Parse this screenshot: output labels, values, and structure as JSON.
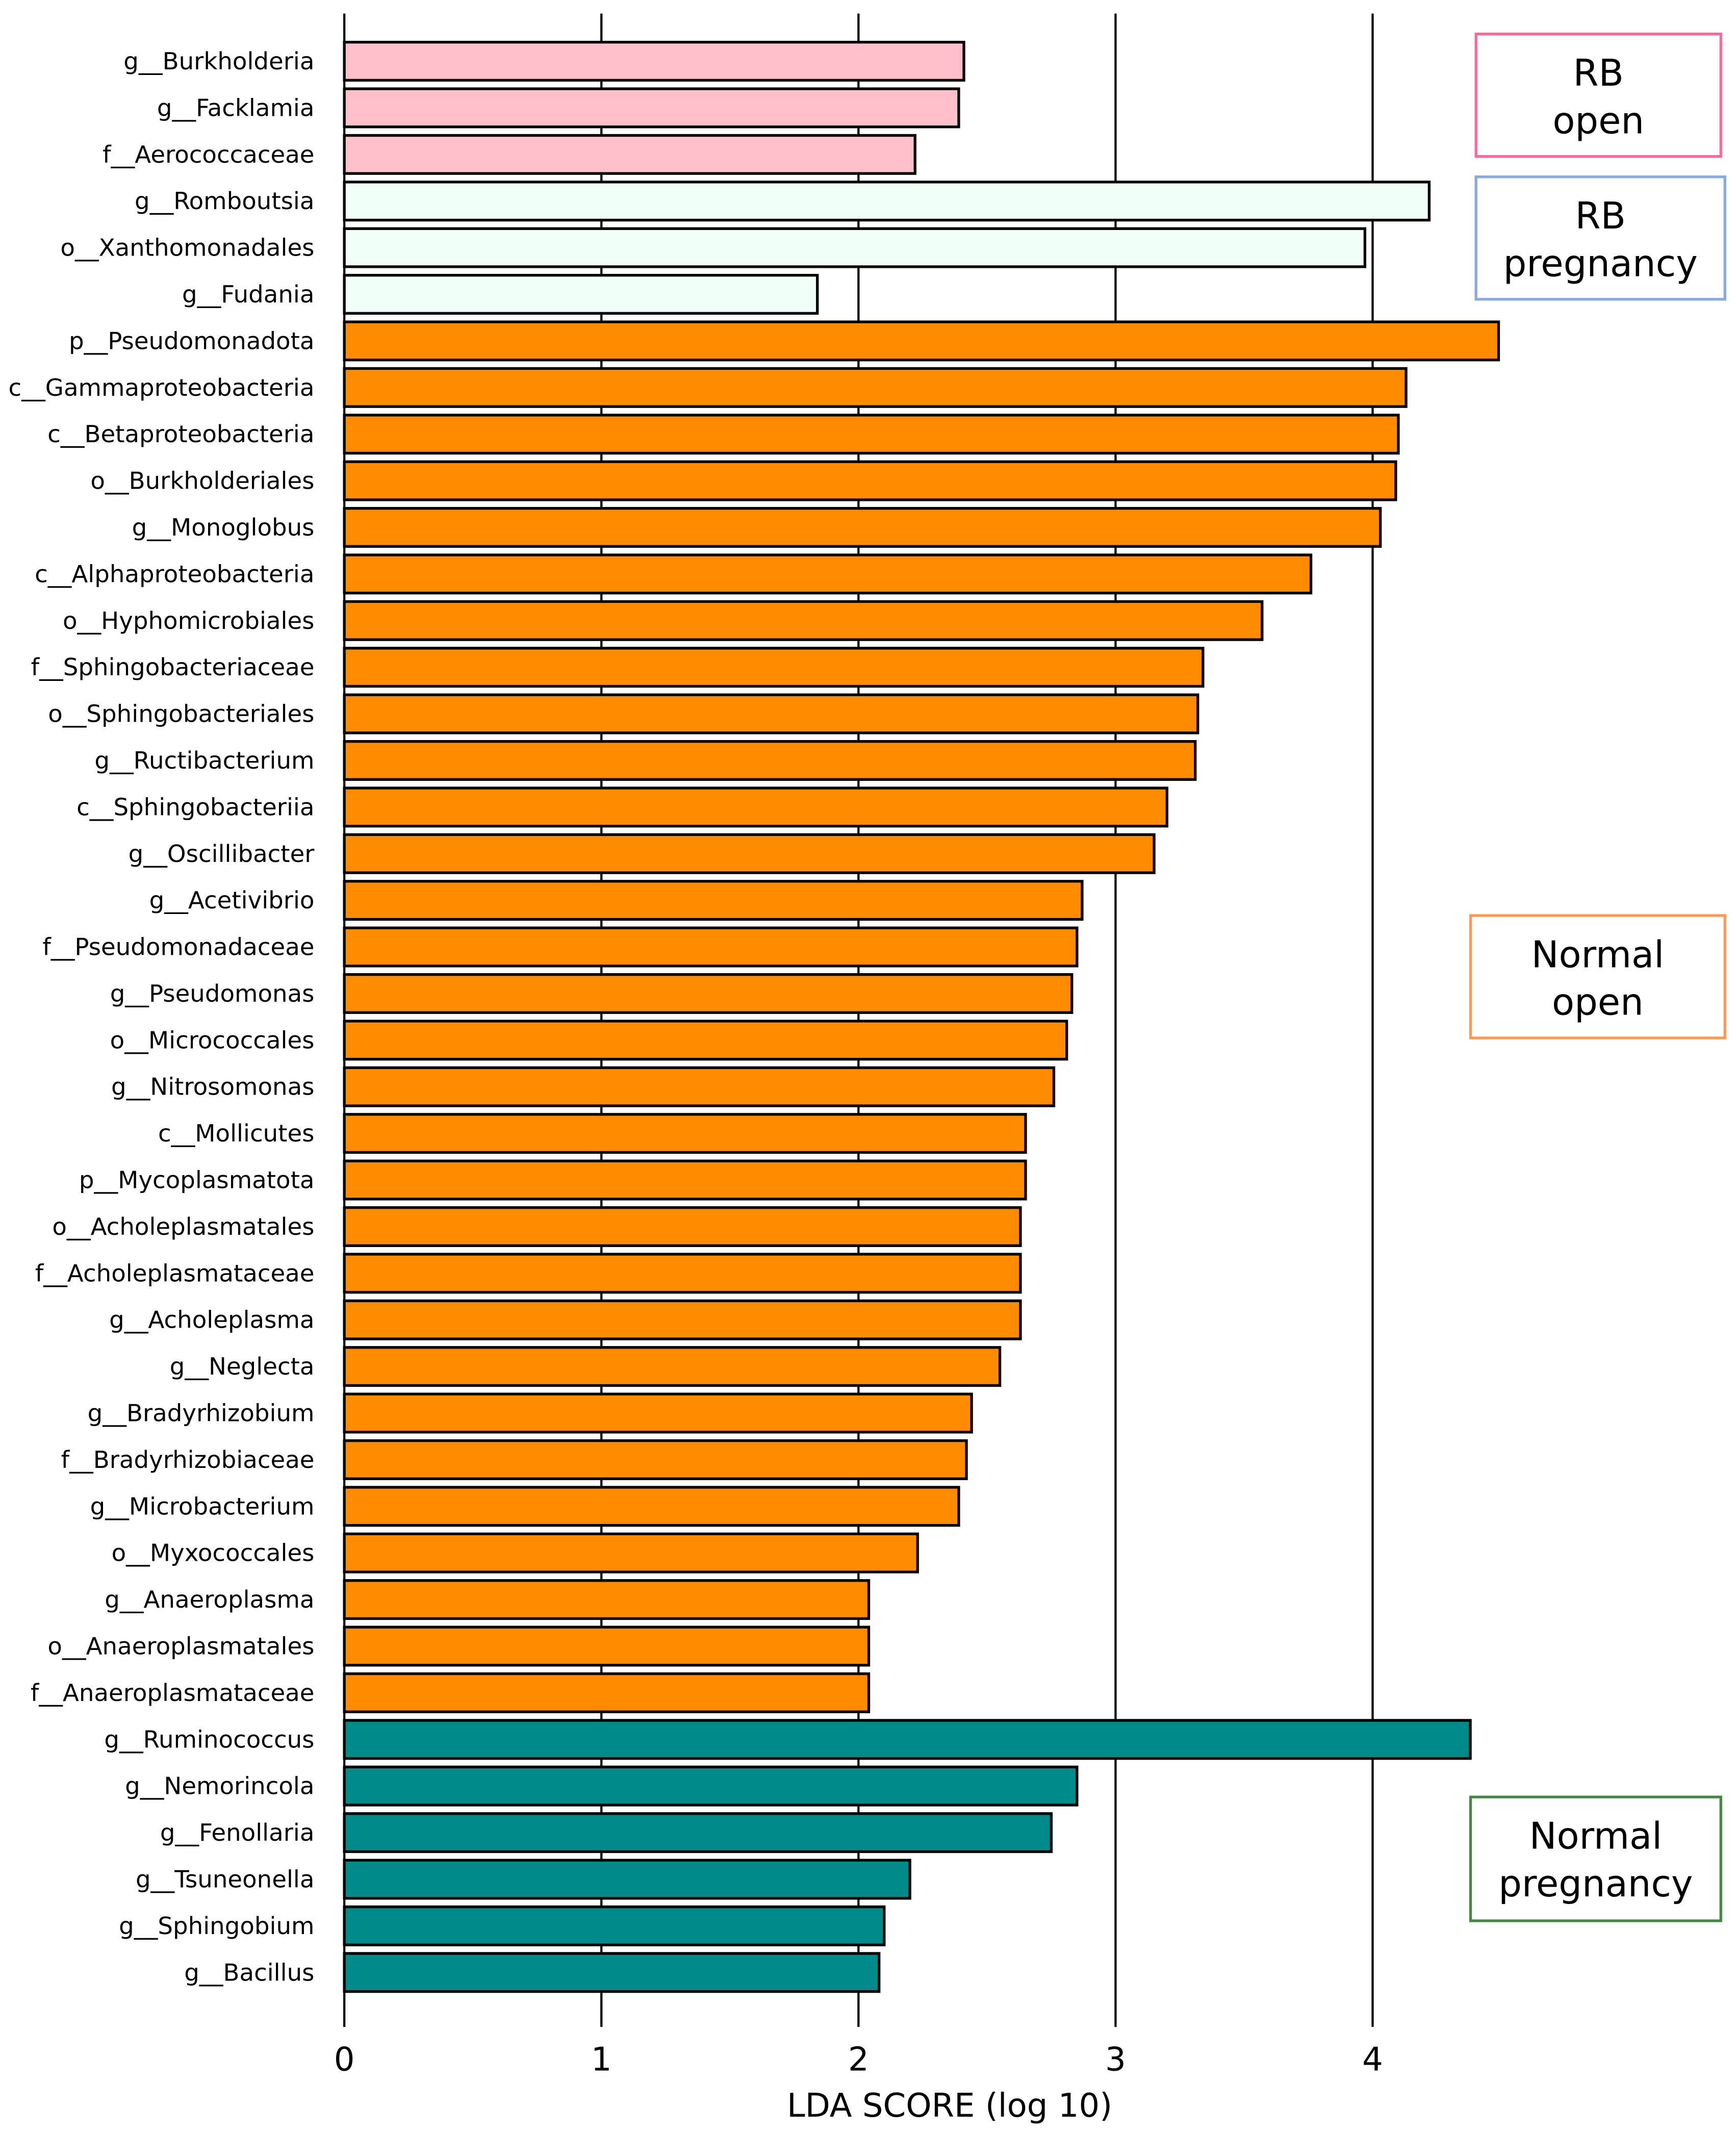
{
  "chart_data": {
    "type": "bar",
    "orientation": "horizontal",
    "xlabel": "LDA SCORE (log 10)",
    "xlim": [
      0,
      4.5
    ],
    "xticks": [
      "0",
      "1",
      "2",
      "3",
      "4"
    ],
    "grid": "vertical lines at integer ticks",
    "legend_placement": "right",
    "groups": [
      {
        "name_line1": "RB",
        "name_line2": "open",
        "fill": "#ffc0cb",
        "border": "#ff6699"
      },
      {
        "name_line1": "RB",
        "name_line2": "pregnancy",
        "fill": "#f0fff8",
        "border": "#88aadd"
      },
      {
        "name_line1": "Normal",
        "name_line2": "open",
        "fill": "#ff8c00",
        "border": "#ff9955"
      },
      {
        "name_line1": "Normal",
        "name_line2": "pregnancy",
        "fill": "#008b8b",
        "border": "#448844"
      }
    ],
    "bars": [
      {
        "label": "g__Burkholderia",
        "value": 2.41,
        "group": 0
      },
      {
        "label": "g__Facklamia",
        "value": 2.39,
        "group": 0
      },
      {
        "label": "f__Aerococcaceae",
        "value": 2.22,
        "group": 0
      },
      {
        "label": "g__Romboutsia",
        "value": 4.22,
        "group": 1
      },
      {
        "label": "o__Xanthomonadales",
        "value": 3.97,
        "group": 1
      },
      {
        "label": "g__Fudania",
        "value": 1.84,
        "group": 1
      },
      {
        "label": "p__Pseudomonadota",
        "value": 4.49,
        "group": 2
      },
      {
        "label": "c__Gammaproteobacteria",
        "value": 4.13,
        "group": 2
      },
      {
        "label": "c__Betaproteobacteria",
        "value": 4.1,
        "group": 2
      },
      {
        "label": "o__Burkholderiales",
        "value": 4.09,
        "group": 2
      },
      {
        "label": "g__Monoglobus",
        "value": 4.03,
        "group": 2
      },
      {
        "label": "c__Alphaproteobacteria",
        "value": 3.76,
        "group": 2
      },
      {
        "label": "o__Hyphomicrobiales",
        "value": 3.57,
        "group": 2
      },
      {
        "label": "f__Sphingobacteriaceae",
        "value": 3.34,
        "group": 2
      },
      {
        "label": "o__Sphingobacteriales",
        "value": 3.32,
        "group": 2
      },
      {
        "label": "g__Ructibacterium",
        "value": 3.31,
        "group": 2
      },
      {
        "label": "c__Sphingobacteriia",
        "value": 3.2,
        "group": 2
      },
      {
        "label": "g__Oscillibacter",
        "value": 3.15,
        "group": 2
      },
      {
        "label": "g__Acetivibrio",
        "value": 2.87,
        "group": 2
      },
      {
        "label": "f__Pseudomonadaceae",
        "value": 2.85,
        "group": 2
      },
      {
        "label": "g__Pseudomonas",
        "value": 2.83,
        "group": 2
      },
      {
        "label": "o__Micrococcales",
        "value": 2.81,
        "group": 2
      },
      {
        "label": "g__Nitrosomonas",
        "value": 2.76,
        "group": 2
      },
      {
        "label": "c__Mollicutes",
        "value": 2.65,
        "group": 2
      },
      {
        "label": "p__Mycoplasmatota",
        "value": 2.65,
        "group": 2
      },
      {
        "label": "o__Acholeplasmatales",
        "value": 2.63,
        "group": 2
      },
      {
        "label": "f__Acholeplasmataceae",
        "value": 2.63,
        "group": 2
      },
      {
        "label": "g__Acholeplasma",
        "value": 2.63,
        "group": 2
      },
      {
        "label": "g__Neglecta",
        "value": 2.55,
        "group": 2
      },
      {
        "label": "g__Bradyrhizobium",
        "value": 2.44,
        "group": 2
      },
      {
        "label": "f__Bradyrhizobiaceae",
        "value": 2.42,
        "group": 2
      },
      {
        "label": "g__Microbacterium",
        "value": 2.39,
        "group": 2
      },
      {
        "label": "o__Myxococcales",
        "value": 2.23,
        "group": 2
      },
      {
        "label": "g__Anaeroplasma",
        "value": 2.04,
        "group": 2
      },
      {
        "label": "o__Anaeroplasmatales",
        "value": 2.04,
        "group": 2
      },
      {
        "label": "f__Anaeroplasmataceae",
        "value": 2.04,
        "group": 2
      },
      {
        "label": "g__Ruminococcus",
        "value": 4.38,
        "group": 3
      },
      {
        "label": "g__Nemorincola",
        "value": 2.85,
        "group": 3
      },
      {
        "label": "g__Fenollaria",
        "value": 2.75,
        "group": 3
      },
      {
        "label": "g__Tsuneonella",
        "value": 2.2,
        "group": 3
      },
      {
        "label": "g__Sphingobium",
        "value": 2.1,
        "group": 3
      },
      {
        "label": "g__Bacillus",
        "value": 2.08,
        "group": 3
      }
    ]
  }
}
